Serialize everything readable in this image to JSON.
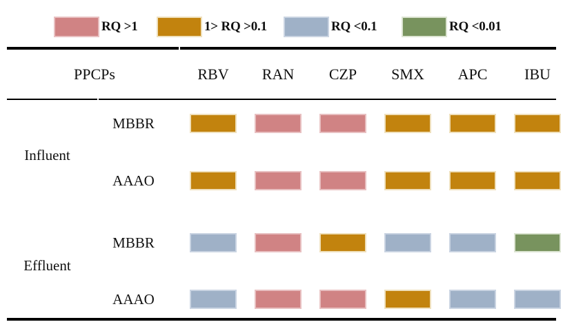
{
  "colors": {
    "background": "#ffffff",
    "text": "#111111",
    "rule": "#000000"
  },
  "chart_data": {
    "type": "heatmap",
    "row_header_label": "PPCPs",
    "columns": [
      "RBV",
      "RAN",
      "CZP",
      "SMX",
      "APC",
      "IBU"
    ],
    "row_groups": [
      {
        "label": "Influent",
        "rows": [
          {
            "label": "MBBR",
            "values": [
              "1> RQ >0.1",
              "RQ >1",
              "RQ >1",
              "1> RQ >0.1",
              "1> RQ >0.1",
              "1> RQ >0.1"
            ]
          },
          {
            "label": "AAAO",
            "values": [
              "1> RQ >0.1",
              "RQ >1",
              "RQ >1",
              "1> RQ >0.1",
              "1> RQ >0.1",
              "1> RQ >0.1"
            ]
          }
        ]
      },
      {
        "label": "Effluent",
        "rows": [
          {
            "label": "MBBR",
            "values": [
              "RQ <0.1",
              "RQ >1",
              "1> RQ >0.1",
              "RQ <0.1",
              "RQ <0.1",
              "RQ <0.01"
            ]
          },
          {
            "label": "AAAO",
            "values": [
              "RQ <0.1",
              "RQ >1",
              "RQ >1",
              "1> RQ >0.1",
              "RQ <0.1",
              "RQ <0.1"
            ]
          }
        ]
      }
    ],
    "legend": [
      {
        "label": "RQ >1",
        "color": "#d08384",
        "border": "#e8c0c1"
      },
      {
        "label": "1> RQ >0.1",
        "color": "#c2830e",
        "border": "#efe0bc"
      },
      {
        "label": "RQ <0.1",
        "color": "#9fb1c7",
        "border": "#cad4e2"
      },
      {
        "label": "RQ <0.01",
        "color": "#78935e",
        "border": "#dce4d2"
      }
    ],
    "legend_position": "top",
    "grid": false
  }
}
